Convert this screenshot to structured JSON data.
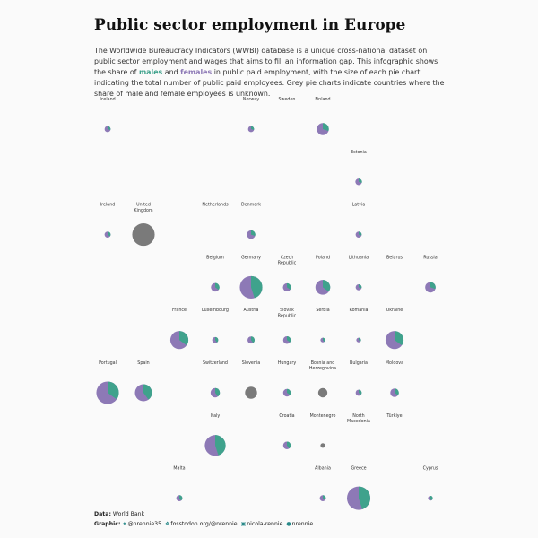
{
  "title": "Public sector employment in Europe",
  "subtitle": {
    "part1": "The Worldwide Bureaucracy Indicators (WWBI) database is a unique cross-national dataset on public sector employment and wages that aims to fill an information gap. This infographic shows the share of ",
    "males": "males",
    "part2": " and ",
    "females": "females",
    "part3": " in public paid employment, with the size of each pie chart indicating the total number of public paid employees. Grey pie charts indicate countries where the share of male and female employees is unknown."
  },
  "colors": {
    "male": "#3fa28c",
    "female": "#8d79b6",
    "unknown": "#7a7a7a"
  },
  "footer": {
    "data_label": "Data",
    "data_value": "World Bank",
    "graphic_label": "Graphic",
    "twitter": "@nrennie35",
    "mastodon": "fosstodon.org/@nrennie",
    "linkedin": "nicola-rennie",
    "github": "nrennie",
    "icons": [
      "twitter-icon",
      "mastodon-icon",
      "linkedin-icon",
      "github-icon"
    ]
  },
  "chart_data": {
    "type": "pie",
    "title": "Public sector employment in Europe",
    "size_legend": "pie size indicates total number of public paid employees (relative scale 0-1)",
    "countries": [
      {
        "name": "Iceland",
        "col": 0,
        "row": 0,
        "size": 0.05,
        "male_share": 0.3
      },
      {
        "name": "Norway",
        "col": 4,
        "row": 0,
        "size": 0.05,
        "male_share": 0.3
      },
      {
        "name": "Sweden",
        "col": 5,
        "row": 0,
        "size": null,
        "male_share": null
      },
      {
        "name": "Finland",
        "col": 6,
        "row": 0,
        "size": 0.2,
        "male_share": 0.3
      },
      {
        "name": "Estonia",
        "col": 7,
        "row": 1,
        "size": 0.06,
        "male_share": 0.3
      },
      {
        "name": "Ireland",
        "col": 0,
        "row": 2,
        "size": 0.05,
        "male_share": 0.35
      },
      {
        "name": "United Kingdom",
        "col": 1,
        "row": 2,
        "size": 0.7,
        "male_share": null
      },
      {
        "name": "Netherlands",
        "col": 3,
        "row": 2,
        "size": null,
        "male_share": null
      },
      {
        "name": "Denmark",
        "col": 4,
        "row": 2,
        "size": 0.1,
        "male_share": 0.3
      },
      {
        "name": "Latvia",
        "col": 7,
        "row": 2,
        "size": 0.05,
        "male_share": 0.3
      },
      {
        "name": "Belgium",
        "col": 3,
        "row": 3,
        "size": 0.1,
        "male_share": 0.35
      },
      {
        "name": "Germany",
        "col": 4,
        "row": 3,
        "size": 0.7,
        "male_share": 0.45
      },
      {
        "name": "Czech Republic",
        "col": 5,
        "row": 3,
        "size": 0.09,
        "male_share": 0.35
      },
      {
        "name": "Poland",
        "col": 6,
        "row": 3,
        "size": 0.3,
        "male_share": 0.35
      },
      {
        "name": "Lithuania",
        "col": 7,
        "row": 3,
        "size": 0.05,
        "male_share": 0.3
      },
      {
        "name": "Belarus",
        "col": 8,
        "row": 3,
        "size": null,
        "male_share": null
      },
      {
        "name": "Russia",
        "col": 9,
        "row": 3,
        "size": 0.15,
        "male_share": 0.3
      },
      {
        "name": "France",
        "col": 2,
        "row": 4,
        "size": 0.45,
        "male_share": 0.35
      },
      {
        "name": "Luxembourg",
        "col": 3,
        "row": 4,
        "size": 0.05,
        "male_share": 0.4
      },
      {
        "name": "Austria",
        "col": 4,
        "row": 4,
        "size": 0.07,
        "male_share": 0.4
      },
      {
        "name": "Slovak Republic",
        "col": 5,
        "row": 4,
        "size": 0.08,
        "male_share": 0.35
      },
      {
        "name": "Serbia",
        "col": 6,
        "row": 4,
        "size": 0.02,
        "male_share": 0.4
      },
      {
        "name": "Romania",
        "col": 7,
        "row": 4,
        "size": 0.02,
        "male_share": 0.35
      },
      {
        "name": "Ukraine",
        "col": 8,
        "row": 4,
        "size": 0.45,
        "male_share": 0.35
      },
      {
        "name": "Portugal",
        "col": 0,
        "row": 5,
        "size": 0.7,
        "male_share": 0.35
      },
      {
        "name": "Spain",
        "col": 1,
        "row": 5,
        "size": 0.4,
        "male_share": 0.4
      },
      {
        "name": "Switzerland",
        "col": 3,
        "row": 5,
        "size": 0.12,
        "male_share": 0.4
      },
      {
        "name": "Slovenia",
        "col": 4,
        "row": 5,
        "size": 0.2,
        "male_share": null
      },
      {
        "name": "Hungary",
        "col": 5,
        "row": 5,
        "size": 0.08,
        "male_share": 0.35
      },
      {
        "name": "Bosnia and Herzegovina",
        "col": 6,
        "row": 5,
        "size": 0.12,
        "male_share": null
      },
      {
        "name": "Bulgaria",
        "col": 7,
        "row": 5,
        "size": 0.05,
        "male_share": 0.35
      },
      {
        "name": "Moldova",
        "col": 8,
        "row": 5,
        "size": 0.1,
        "male_share": 0.35
      },
      {
        "name": "Italy",
        "col": 3,
        "row": 6,
        "size": 0.6,
        "male_share": 0.45
      },
      {
        "name": "Croatia",
        "col": 5,
        "row": 6,
        "size": 0.08,
        "male_share": 0.4
      },
      {
        "name": "Montenegro",
        "col": 6,
        "row": 6,
        "size": 0.02,
        "male_share": null
      },
      {
        "name": "North Macedonia",
        "col": 7,
        "row": 6,
        "size": null,
        "male_share": null
      },
      {
        "name": "Türkiye",
        "col": 8,
        "row": 6,
        "size": null,
        "male_share": null
      },
      {
        "name": "Malta",
        "col": 2,
        "row": 7,
        "size": 0.05,
        "male_share": 0.4
      },
      {
        "name": "Albania",
        "col": 6,
        "row": 7,
        "size": 0.05,
        "male_share": 0.35
      },
      {
        "name": "Greece",
        "col": 7,
        "row": 7,
        "size": 0.75,
        "male_share": 0.45
      },
      {
        "name": "Cyprus",
        "col": 9,
        "row": 7,
        "size": 0.03,
        "male_share": 0.45
      }
    ]
  }
}
